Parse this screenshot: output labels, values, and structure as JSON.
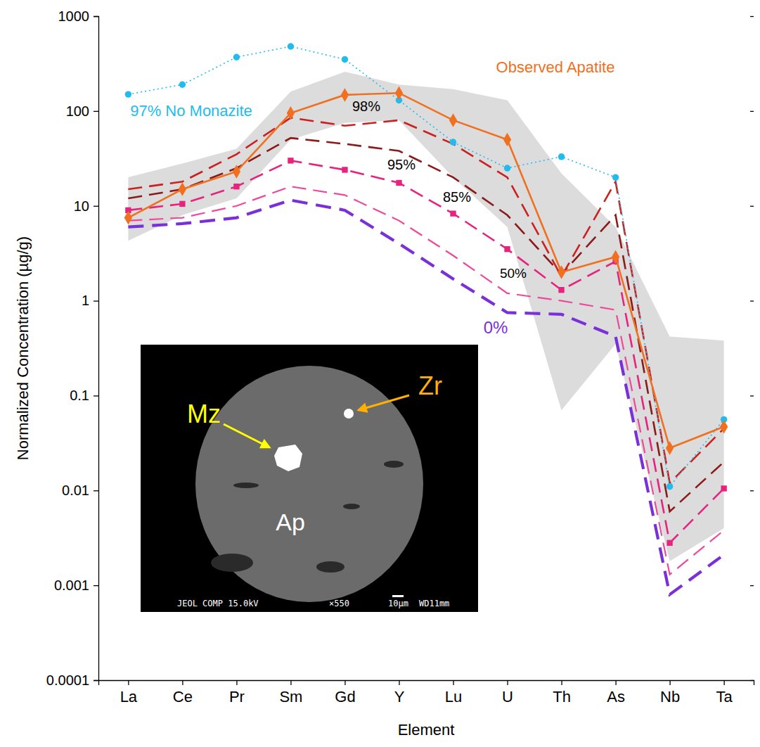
{
  "chart_data": {
    "type": "line",
    "x_label": "Element",
    "y_label": "Normalized Concentration (µg/g)",
    "log": "y",
    "grid": false,
    "categories": [
      "La",
      "Ce",
      "Pr",
      "Sm",
      "Gd",
      "Y",
      "Lu",
      "U",
      "Th",
      "As",
      "Nb",
      "Ta"
    ],
    "ylim": [
      0.0001,
      1000
    ],
    "yticks": [
      0.0001,
      0.001,
      0.01,
      0.1,
      1,
      10,
      100,
      1000
    ],
    "range_band": {
      "color": "#dcdcdc",
      "upper": [
        20,
        28,
        40,
        160,
        260,
        190,
        170,
        130,
        22,
        6,
        0.42,
        0.38
      ],
      "lower": [
        4.3,
        8,
        12,
        50,
        75,
        80,
        20,
        6,
        0.07,
        0.35,
        0.0018,
        0.004
      ]
    },
    "series": [
      {
        "name": "Observed Apatite",
        "color": "#f07020",
        "line_style": "solid",
        "marker": "diamond",
        "values": [
          7.5,
          15,
          23,
          95,
          148,
          155,
          80,
          50,
          2.0,
          2.9,
          0.028,
          0.047
        ]
      },
      {
        "name": "97% No Monazite",
        "color": "#22bbee",
        "line_style": "dotted",
        "marker": "circle",
        "values": [
          150,
          190,
          370,
          480,
          350,
          130,
          47,
          25,
          33,
          20,
          0.011,
          0.056
        ]
      },
      {
        "name": "98%",
        "color": "#cc2020",
        "line_style": "dashed",
        "marker": "none",
        "values": [
          15,
          18,
          35,
          85,
          70,
          80,
          45,
          20,
          1.8,
          18,
          0.012,
          0.045
        ]
      },
      {
        "name": "95%",
        "color": "#8b1a1a",
        "line_style": "dashed",
        "marker": "none",
        "values": [
          12,
          15,
          25,
          52,
          45,
          38,
          20,
          8,
          1.9,
          8,
          0.006,
          0.02
        ]
      },
      {
        "name": "85%",
        "color": "#e8237d",
        "line_style": "dashed",
        "marker": "square",
        "values": [
          9,
          10.5,
          16,
          30,
          24,
          17.5,
          8.3,
          3.5,
          1.3,
          2.6,
          0.0028,
          0.0105
        ]
      },
      {
        "name": "50%",
        "color": "#ee4a9a",
        "line_style": "dashed",
        "marker": "none",
        "values": [
          7,
          7.5,
          10,
          16,
          13,
          7,
          3,
          1.2,
          1.0,
          0.8,
          0.0013,
          0.0038
        ]
      },
      {
        "name": "0%",
        "color": "#7a30d8",
        "line_style": "dashed",
        "marker": "none",
        "values": [
          6,
          6.5,
          7.5,
          11.5,
          9,
          4,
          1.7,
          0.75,
          0.72,
          0.42,
          0.0008,
          0.0021
        ]
      }
    ]
  },
  "inset": {
    "labels": [
      "Mz",
      "Zr",
      "Ap"
    ],
    "caption": [
      "JEOL COMP 15.0kV",
      "×550",
      "10µm",
      "WD11mm"
    ]
  }
}
